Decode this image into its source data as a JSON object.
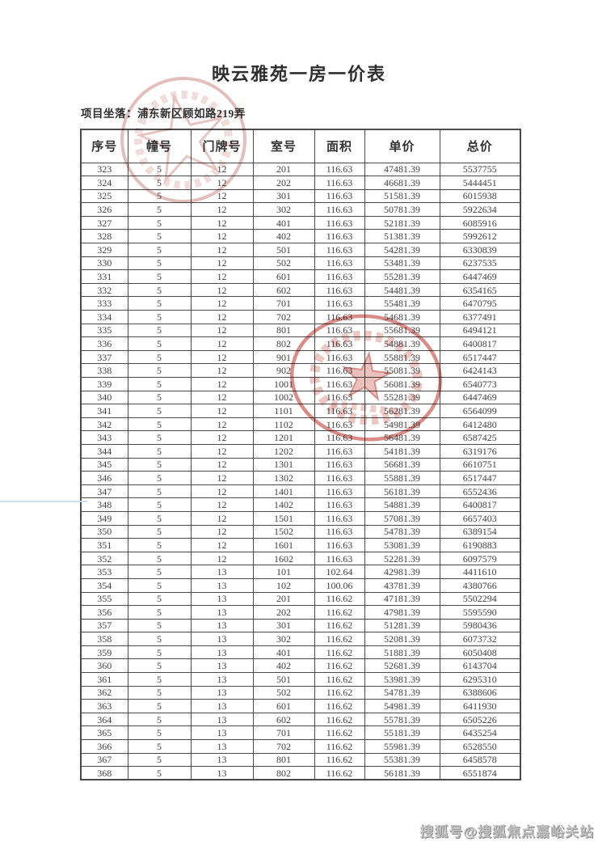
{
  "page": {
    "title": "映云雅苑一房一价表",
    "location": "项目坐落：浦东新区顾如路219弄"
  },
  "table": {
    "headers": [
      "序号",
      "幢号",
      "门牌号",
      "室号",
      "面积",
      "单价",
      "总价"
    ],
    "rows": [
      [
        "323",
        "5",
        "12",
        "201",
        "116.63",
        "47481.39",
        "5537755"
      ],
      [
        "324",
        "5",
        "12",
        "202",
        "116.63",
        "46681.39",
        "5444451"
      ],
      [
        "325",
        "5",
        "12",
        "301",
        "116.63",
        "51581.39",
        "6015938"
      ],
      [
        "326",
        "5",
        "12",
        "302",
        "116.63",
        "50781.39",
        "5922634"
      ],
      [
        "327",
        "5",
        "12",
        "401",
        "116.63",
        "52181.39",
        "6085916"
      ],
      [
        "328",
        "5",
        "12",
        "402",
        "116.63",
        "51381.39",
        "5992612"
      ],
      [
        "329",
        "5",
        "12",
        "501",
        "116.63",
        "54281.39",
        "6330839"
      ],
      [
        "330",
        "5",
        "12",
        "502",
        "116.63",
        "53481.39",
        "6237535"
      ],
      [
        "331",
        "5",
        "12",
        "601",
        "116.63",
        "55281.39",
        "6447469"
      ],
      [
        "332",
        "5",
        "12",
        "602",
        "116.63",
        "54481.39",
        "6354165"
      ],
      [
        "333",
        "5",
        "12",
        "701",
        "116.63",
        "55481.39",
        "6470795"
      ],
      [
        "334",
        "5",
        "12",
        "702",
        "116.63",
        "54681.39",
        "6377491"
      ],
      [
        "335",
        "5",
        "12",
        "801",
        "116.63",
        "55681.39",
        "6494121"
      ],
      [
        "336",
        "5",
        "12",
        "802",
        "116.63",
        "54881.39",
        "6400817"
      ],
      [
        "337",
        "5",
        "12",
        "901",
        "116.63",
        "55881.39",
        "6517447"
      ],
      [
        "338",
        "5",
        "12",
        "902",
        "116.63",
        "55081.39",
        "6424143"
      ],
      [
        "339",
        "5",
        "12",
        "1001",
        "116.63",
        "56081.39",
        "6540773"
      ],
      [
        "340",
        "5",
        "12",
        "1002",
        "116.63",
        "55281.39",
        "6447469"
      ],
      [
        "341",
        "5",
        "12",
        "1101",
        "116.63",
        "56281.39",
        "6564099"
      ],
      [
        "342",
        "5",
        "12",
        "1102",
        "116.63",
        "54981.39",
        "6412480"
      ],
      [
        "343",
        "5",
        "12",
        "1201",
        "116.63",
        "56481.39",
        "6587425"
      ],
      [
        "344",
        "5",
        "12",
        "1202",
        "116.63",
        "54181.39",
        "6319176"
      ],
      [
        "345",
        "5",
        "12",
        "1301",
        "116.63",
        "56681.39",
        "6610751"
      ],
      [
        "346",
        "5",
        "12",
        "1302",
        "116.63",
        "55881.39",
        "6517447"
      ],
      [
        "347",
        "5",
        "12",
        "1401",
        "116.63",
        "56181.39",
        "6552436"
      ],
      [
        "348",
        "5",
        "12",
        "1402",
        "116.63",
        "54881.39",
        "6400817"
      ],
      [
        "349",
        "5",
        "12",
        "1501",
        "116.63",
        "57081.39",
        "6657403"
      ],
      [
        "350",
        "5",
        "12",
        "1502",
        "116.63",
        "54781.39",
        "6389154"
      ],
      [
        "351",
        "5",
        "12",
        "1601",
        "116.63",
        "53081.39",
        "6190883"
      ],
      [
        "352",
        "5",
        "12",
        "1602",
        "116.63",
        "52281.39",
        "6097579"
      ],
      [
        "353",
        "5",
        "13",
        "101",
        "102.64",
        "42981.39",
        "4411610"
      ],
      [
        "354",
        "5",
        "13",
        "102",
        "100.06",
        "43781.39",
        "4380766"
      ],
      [
        "355",
        "5",
        "13",
        "201",
        "116.62",
        "47181.39",
        "5502294"
      ],
      [
        "356",
        "5",
        "13",
        "202",
        "116.62",
        "47981.39",
        "5595590"
      ],
      [
        "357",
        "5",
        "13",
        "301",
        "116.62",
        "51281.39",
        "5980436"
      ],
      [
        "358",
        "5",
        "13",
        "302",
        "116.62",
        "52081.39",
        "6073732"
      ],
      [
        "359",
        "5",
        "13",
        "401",
        "116.62",
        "51881.39",
        "6050408"
      ],
      [
        "360",
        "5",
        "13",
        "402",
        "116.62",
        "52681.39",
        "6143704"
      ],
      [
        "361",
        "5",
        "13",
        "501",
        "116.62",
        "53981.39",
        "6295310"
      ],
      [
        "362",
        "5",
        "13",
        "502",
        "116.62",
        "54781.39",
        "6388606"
      ],
      [
        "363",
        "5",
        "13",
        "601",
        "116.62",
        "54981.39",
        "6411930"
      ],
      [
        "364",
        "5",
        "13",
        "602",
        "116.62",
        "55781.39",
        "6505226"
      ],
      [
        "365",
        "5",
        "13",
        "701",
        "116.62",
        "55181.39",
        "6435254"
      ],
      [
        "366",
        "5",
        "13",
        "702",
        "116.62",
        "55981.39",
        "6528550"
      ],
      [
        "367",
        "5",
        "13",
        "801",
        "116.62",
        "55381.39",
        "6458578"
      ],
      [
        "368",
        "5",
        "13",
        "802",
        "116.62",
        "56181.39",
        "6551874"
      ]
    ]
  },
  "footer": {
    "watermark": "搜狐号@搜狐焦点嘉峪关站"
  },
  "colors": {
    "stamp_red": "#c4473d",
    "stamp_pink": "#c87f7a",
    "border_color": "#4a4a4a",
    "text_color": "#424242",
    "text_dark": "#2f2f2f",
    "watermark_color": "#c2c2c2"
  }
}
